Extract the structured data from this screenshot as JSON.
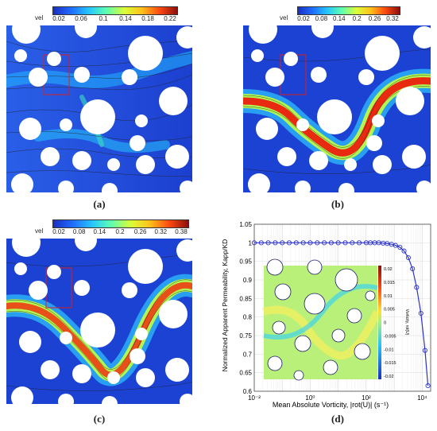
{
  "panels": [
    {
      "label": "(a)",
      "colorbar_label": "vel",
      "colorbar_ticks": [
        "0.02",
        "0.06",
        "0.1",
        "0.14",
        "0.18",
        "0.22"
      ],
      "colormap": [
        "#1a2fbf",
        "#1f6bff",
        "#25c4ff",
        "#5dffb0",
        "#d8ff3a",
        "#ffc21a",
        "#ff4a10",
        "#8a0f0f"
      ]
    },
    {
      "label": "(b)",
      "colorbar_label": "vel",
      "colorbar_ticks": [
        "0.02",
        "0.08",
        "0.14",
        "0.2",
        "0.26",
        "0.32"
      ],
      "colormap": [
        "#1a2fbf",
        "#1f6bff",
        "#25c4ff",
        "#5dffb0",
        "#d8ff3a",
        "#ffc21a",
        "#ff4a10",
        "#8a0f0f"
      ]
    },
    {
      "label": "(c)",
      "colorbar_label": "vel",
      "colorbar_ticks": [
        "0.02",
        "0.08",
        "0.14",
        "0.2",
        "0.26",
        "0.32",
        "0.38"
      ],
      "colormap": [
        "#1a2fbf",
        "#1f6bff",
        "#25c4ff",
        "#5dffb0",
        "#d8ff3a",
        "#ffc21a",
        "#ff4a10",
        "#8a0f0f"
      ]
    },
    {
      "label": "(d)"
    }
  ],
  "chart_data": {
    "type": "line",
    "xlabel": "Mean Absolute Vorticity, |rot(U)| (s⁻¹)",
    "ylabel": "Normalized Apparent Permeability, Kapp/KD",
    "xscale": "log",
    "xlim": [
      0.01,
      20000
    ],
    "ylim": [
      0.6,
      1.05
    ],
    "x_ticks": [
      "10⁻²",
      "10⁰",
      "10²",
      "10⁴"
    ],
    "y_ticks": [
      "0.6",
      "0.65",
      "0.7",
      "0.75",
      "0.8",
      "0.85",
      "0.9",
      "0.95",
      "1",
      "1.05"
    ],
    "grid": true,
    "series": [
      {
        "color": "#2d33c9",
        "marker": "circle",
        "x": [
          0.01,
          0.0178,
          0.0316,
          0.0562,
          0.1,
          0.178,
          0.316,
          0.562,
          1,
          1.78,
          3.16,
          5.62,
          10,
          17.8,
          31.6,
          56.2,
          100,
          140,
          200,
          280,
          400,
          560,
          800,
          1120,
          1600,
          2240,
          3200,
          4500,
          6300,
          9000,
          12600,
          16000
        ],
        "y": [
          1,
          1,
          1,
          1,
          1,
          1,
          1,
          1,
          1,
          1,
          1,
          1,
          1,
          1,
          1,
          1,
          1,
          1,
          1,
          1,
          0.999,
          0.998,
          0.996,
          0.993,
          0.988,
          0.978,
          0.96,
          0.93,
          0.88,
          0.81,
          0.71,
          0.615
        ]
      }
    ],
    "inset": {
      "colorbar_label": "Vorticity, rot(U)",
      "colorbar_ticks": [
        "0.02",
        "0.015",
        "0.01",
        "0.005",
        "0",
        "-0.005",
        "-0.01",
        "-0.015",
        "-0.02"
      ]
    }
  }
}
